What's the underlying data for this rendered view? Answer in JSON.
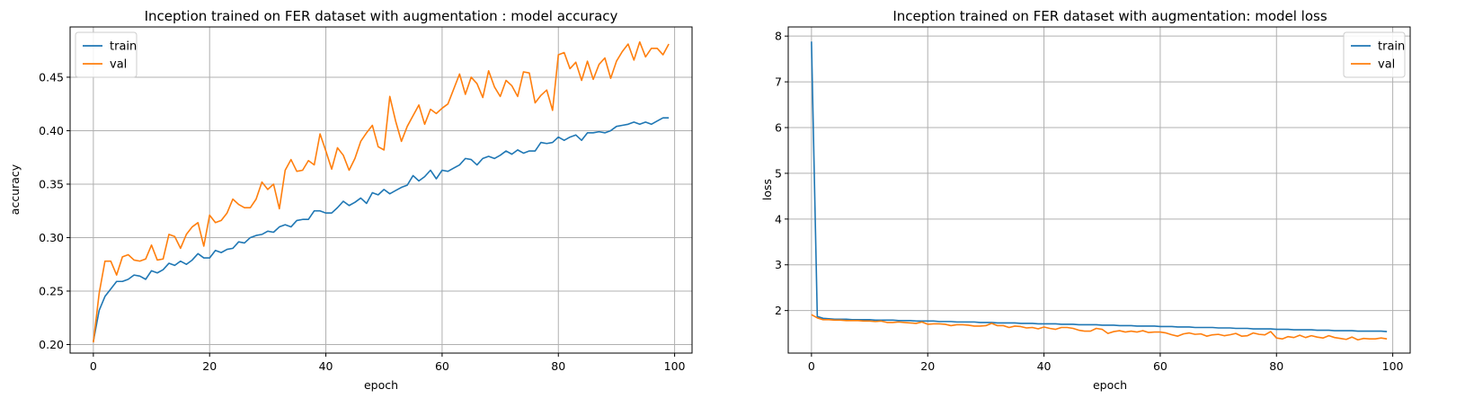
{
  "chart_data": [
    {
      "type": "line",
      "title": "Inception trained on FER dataset with augmentation : model accuracy",
      "xlabel": "epoch",
      "ylabel": "accuracy",
      "xlim": [
        -4,
        103
      ],
      "ylim": [
        0.192,
        0.497
      ],
      "xticks": [
        0,
        20,
        40,
        60,
        80,
        100
      ],
      "yticks": [
        0.2,
        0.25,
        0.3,
        0.35,
        0.4,
        0.45
      ],
      "ytick_labels": [
        "0.20",
        "0.25",
        "0.30",
        "0.35",
        "0.40",
        "0.45"
      ],
      "grid": true,
      "legend_position": "upper-left",
      "series": [
        {
          "name": "train",
          "color": "#1f77b4",
          "values": [
            0.203,
            0.232,
            0.245,
            0.252,
            0.259,
            0.259,
            0.261,
            0.265,
            0.264,
            0.261,
            0.269,
            0.267,
            0.27,
            0.276,
            0.274,
            0.278,
            0.275,
            0.279,
            0.285,
            0.281,
            0.281,
            0.288,
            0.286,
            0.289,
            0.29,
            0.296,
            0.295,
            0.3,
            0.302,
            0.303,
            0.306,
            0.305,
            0.31,
            0.312,
            0.31,
            0.316,
            0.317,
            0.317,
            0.325,
            0.325,
            0.323,
            0.323,
            0.328,
            0.334,
            0.33,
            0.333,
            0.337,
            0.332,
            0.342,
            0.34,
            0.345,
            0.341,
            0.344,
            0.347,
            0.349,
            0.358,
            0.353,
            0.357,
            0.363,
            0.355,
            0.363,
            0.362,
            0.365,
            0.368,
            0.374,
            0.373,
            0.368,
            0.374,
            0.376,
            0.374,
            0.377,
            0.381,
            0.378,
            0.382,
            0.379,
            0.381,
            0.381,
            0.389,
            0.388,
            0.389,
            0.394,
            0.391,
            0.394,
            0.396,
            0.391,
            0.398,
            0.398,
            0.399,
            0.398,
            0.4,
            0.404,
            0.405,
            0.406,
            0.408,
            0.406,
            0.408,
            0.406,
            0.409,
            0.412,
            0.412
          ]
        },
        {
          "name": "val",
          "color": "#ff7f0e",
          "values": [
            0.202,
            0.248,
            0.278,
            0.278,
            0.265,
            0.282,
            0.284,
            0.279,
            0.278,
            0.28,
            0.293,
            0.279,
            0.28,
            0.303,
            0.301,
            0.29,
            0.303,
            0.31,
            0.314,
            0.292,
            0.321,
            0.314,
            0.316,
            0.323,
            0.336,
            0.331,
            0.328,
            0.328,
            0.336,
            0.352,
            0.345,
            0.35,
            0.327,
            0.363,
            0.373,
            0.362,
            0.363,
            0.372,
            0.368,
            0.397,
            0.381,
            0.364,
            0.384,
            0.377,
            0.363,
            0.374,
            0.39,
            0.398,
            0.405,
            0.385,
            0.382,
            0.432,
            0.409,
            0.39,
            0.404,
            0.414,
            0.424,
            0.406,
            0.42,
            0.416,
            0.421,
            0.425,
            0.439,
            0.453,
            0.434,
            0.45,
            0.444,
            0.431,
            0.456,
            0.441,
            0.432,
            0.447,
            0.442,
            0.432,
            0.455,
            0.454,
            0.426,
            0.433,
            0.438,
            0.419,
            0.471,
            0.473,
            0.458,
            0.464,
            0.447,
            0.465,
            0.448,
            0.462,
            0.468,
            0.449,
            0.465,
            0.474,
            0.481,
            0.466,
            0.483,
            0.469,
            0.477,
            0.477,
            0.471,
            0.481
          ]
        }
      ]
    },
    {
      "type": "line",
      "title": "Inception trained on FER dataset with augmentation: model loss",
      "xlabel": "epoch",
      "ylabel": "loss",
      "xlim": [
        -4,
        103
      ],
      "ylim": [
        1.07,
        8.2
      ],
      "xticks": [
        0,
        20,
        40,
        60,
        80,
        100
      ],
      "yticks": [
        2,
        3,
        4,
        5,
        6,
        7,
        8
      ],
      "ytick_labels": [
        "2",
        "3",
        "4",
        "5",
        "6",
        "7",
        "8"
      ],
      "grid": true,
      "legend_position": "upper-right",
      "series": [
        {
          "name": "train",
          "color": "#1f77b4",
          "values": [
            7.88,
            1.87,
            1.83,
            1.82,
            1.81,
            1.81,
            1.81,
            1.8,
            1.8,
            1.8,
            1.8,
            1.79,
            1.79,
            1.79,
            1.79,
            1.78,
            1.78,
            1.78,
            1.77,
            1.77,
            1.77,
            1.77,
            1.76,
            1.76,
            1.76,
            1.75,
            1.75,
            1.75,
            1.75,
            1.74,
            1.74,
            1.74,
            1.73,
            1.73,
            1.73,
            1.73,
            1.72,
            1.72,
            1.72,
            1.71,
            1.71,
            1.71,
            1.71,
            1.7,
            1.7,
            1.7,
            1.69,
            1.69,
            1.69,
            1.69,
            1.68,
            1.68,
            1.68,
            1.67,
            1.67,
            1.67,
            1.66,
            1.66,
            1.66,
            1.66,
            1.65,
            1.65,
            1.65,
            1.64,
            1.64,
            1.64,
            1.63,
            1.63,
            1.63,
            1.63,
            1.62,
            1.62,
            1.62,
            1.61,
            1.61,
            1.61,
            1.6,
            1.6,
            1.6,
            1.6,
            1.59,
            1.59,
            1.59,
            1.58,
            1.58,
            1.58,
            1.58,
            1.57,
            1.57,
            1.57,
            1.56,
            1.56,
            1.56,
            1.56,
            1.55,
            1.55,
            1.55,
            1.55,
            1.55,
            1.54
          ]
        },
        {
          "name": "val",
          "color": "#ff7f0e",
          "values": [
            1.91,
            1.84,
            1.8,
            1.8,
            1.79,
            1.79,
            1.78,
            1.78,
            1.78,
            1.77,
            1.77,
            1.76,
            1.77,
            1.74,
            1.74,
            1.75,
            1.74,
            1.73,
            1.72,
            1.75,
            1.7,
            1.71,
            1.71,
            1.7,
            1.67,
            1.69,
            1.69,
            1.68,
            1.66,
            1.66,
            1.67,
            1.72,
            1.67,
            1.67,
            1.63,
            1.66,
            1.65,
            1.62,
            1.63,
            1.6,
            1.64,
            1.61,
            1.59,
            1.63,
            1.63,
            1.61,
            1.57,
            1.55,
            1.55,
            1.61,
            1.59,
            1.5,
            1.54,
            1.56,
            1.53,
            1.55,
            1.53,
            1.56,
            1.52,
            1.53,
            1.53,
            1.51,
            1.47,
            1.44,
            1.49,
            1.51,
            1.48,
            1.49,
            1.44,
            1.47,
            1.48,
            1.45,
            1.47,
            1.5,
            1.44,
            1.45,
            1.51,
            1.48,
            1.47,
            1.54,
            1.4,
            1.38,
            1.43,
            1.41,
            1.46,
            1.41,
            1.45,
            1.42,
            1.4,
            1.45,
            1.41,
            1.39,
            1.37,
            1.42,
            1.36,
            1.39,
            1.38,
            1.38,
            1.4,
            1.38
          ]
        }
      ]
    }
  ]
}
